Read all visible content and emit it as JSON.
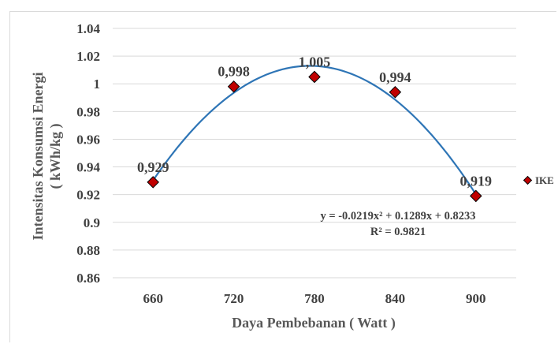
{
  "chart_data": {
    "type": "scatter",
    "x": [
      660,
      720,
      780,
      840,
      900
    ],
    "categories": [
      "660",
      "720",
      "780",
      "840",
      "900"
    ],
    "series": [
      {
        "name": "IKE",
        "values": [
          0.929,
          0.998,
          1.005,
          0.994,
          0.919
        ],
        "color": "#c00000"
      }
    ],
    "data_labels": [
      "0,929",
      "0,998",
      "1,005",
      "0,994",
      "0,919"
    ],
    "yticks": [
      "0.86",
      "0.88",
      "0.9",
      "0.92",
      "0.94",
      "0.96",
      "0.98",
      "1",
      "1.02",
      "1.04"
    ],
    "ylim": [
      0.86,
      1.04
    ],
    "xlabel": "Daya Pembebanan ( Watt )",
    "ylabel_line1": "Intensitas Konsumsi Energi",
    "ylabel_line2": "( kWh/kg )",
    "trendline": {
      "type": "polynomial",
      "order": 2,
      "coefficients": [
        -0.0219,
        0.1289,
        0.8233
      ],
      "color": "#2e75b6",
      "equation": "y = -0.0219x² + 0.1289x + 0.8233",
      "r_squared": "R² = 0.9821"
    },
    "grid": true,
    "legend_position": "right",
    "legend_label": "IKE"
  }
}
